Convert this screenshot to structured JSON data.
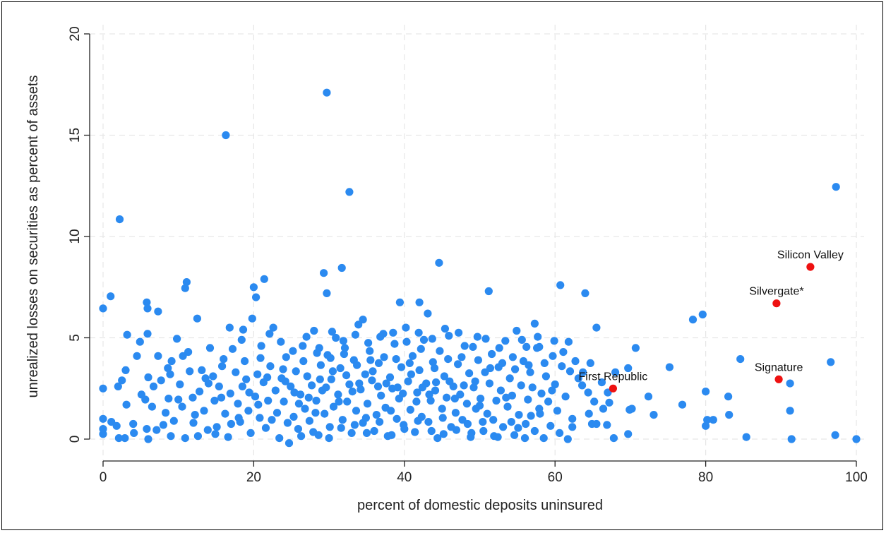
{
  "chart_data": {
    "type": "scatter",
    "xlabel": "percent of domestic deposits uninsured",
    "ylabel": "unrealized losses on securities as percent of assets",
    "xlim": [
      -1.5,
      101
    ],
    "ylim": [
      -0.6,
      21
    ],
    "xticks": [
      0,
      20,
      40,
      60,
      80,
      100
    ],
    "yticks": [
      0,
      5,
      10,
      15,
      20
    ],
    "grid": true,
    "colors": {
      "other_banks": "#2b8af0",
      "highlighted": "#ee1111"
    },
    "highlighted": [
      {
        "label": "Silicon Valley",
        "x": 93.9,
        "y": 8.5
      },
      {
        "label": "Silvergate*",
        "x": 89.4,
        "y": 6.7
      },
      {
        "label": "Signature",
        "x": 89.7,
        "y": 2.95
      },
      {
        "label": "First Republic",
        "x": 67.7,
        "y": 2.5
      }
    ],
    "points": [
      [
        29.7,
        17.1
      ],
      [
        16.3,
        15.0
      ],
      [
        32.7,
        12.2
      ],
      [
        2.2,
        10.85
      ],
      [
        97.3,
        12.45
      ],
      [
        44.6,
        8.7
      ],
      [
        29.3,
        8.2
      ],
      [
        31.7,
        8.45
      ],
      [
        21.4,
        7.9
      ],
      [
        11.1,
        7.75
      ],
      [
        10.9,
        7.45
      ],
      [
        1.0,
        7.05
      ],
      [
        0.0,
        6.45
      ],
      [
        5.8,
        6.75
      ],
      [
        5.9,
        6.45
      ],
      [
        7.3,
        6.3
      ],
      [
        12.5,
        5.95
      ],
      [
        20.0,
        7.5
      ],
      [
        20.3,
        7.0
      ],
      [
        60.7,
        7.6
      ],
      [
        64.0,
        7.2
      ],
      [
        51.2,
        7.3
      ],
      [
        29.7,
        7.2
      ],
      [
        39.4,
        6.75
      ],
      [
        42.0,
        6.75
      ],
      [
        65.5,
        5.5
      ],
      [
        79.6,
        6.15
      ],
      [
        78.3,
        5.9
      ],
      [
        57.3,
        5.7
      ],
      [
        3.2,
        5.15
      ],
      [
        5.9,
        5.2
      ],
      [
        16.8,
        5.5
      ],
      [
        18.6,
        5.4
      ],
      [
        34.5,
        5.9
      ],
      [
        43.1,
        6.2
      ],
      [
        75.2,
        3.55
      ],
      [
        70.7,
        4.5
      ],
      [
        68.0,
        3.3
      ],
      [
        69.7,
        3.5
      ],
      [
        72.4,
        2.1
      ],
      [
        73.1,
        1.2
      ],
      [
        69.9,
        1.45
      ],
      [
        70.2,
        1.5
      ],
      [
        69.7,
        0.25
      ],
      [
        76.9,
        1.7
      ],
      [
        80.0,
        2.35
      ],
      [
        80.0,
        0.65
      ],
      [
        80.2,
        0.95
      ],
      [
        81.0,
        0.95
      ],
      [
        83.0,
        2.1
      ],
      [
        83.1,
        1.2
      ],
      [
        84.6,
        3.95
      ],
      [
        85.4,
        0.1
      ],
      [
        91.2,
        2.75
      ],
      [
        91.2,
        1.4
      ],
      [
        91.4,
        0.0
      ],
      [
        96.6,
        3.8
      ],
      [
        97.2,
        0.2
      ],
      [
        100.0,
        0.0
      ],
      [
        67.8,
        0.05
      ],
      [
        62.3,
        1.0
      ],
      [
        62.3,
        0.6
      ],
      [
        64.5,
        1.25
      ],
      [
        64.9,
        0.75
      ],
      [
        65.5,
        0.75
      ],
      [
        66.9,
        0.7
      ],
      [
        67.0,
        2.3
      ],
      [
        67.2,
        1.8
      ],
      [
        63.1,
        3.0
      ],
      [
        63.7,
        3.3
      ],
      [
        64.4,
        2.3
      ],
      [
        65.2,
        1.85
      ],
      [
        61.8,
        4.8
      ],
      [
        61.1,
        4.3
      ],
      [
        62.0,
        3.35
      ],
      [
        0.0,
        2.5
      ],
      [
        0.0,
        1.0
      ],
      [
        0.0,
        0.25
      ],
      [
        0.0,
        0.5
      ],
      [
        1.1,
        0.85
      ],
      [
        1.8,
        0.65
      ],
      [
        2.1,
        0.05
      ],
      [
        2.9,
        0.05
      ],
      [
        3.1,
        1.7
      ],
      [
        2.5,
        2.9
      ],
      [
        3.0,
        3.4
      ],
      [
        2.0,
        2.6
      ],
      [
        4.0,
        0.75
      ],
      [
        4.1,
        0.3
      ],
      [
        4.5,
        4.1
      ],
      [
        4.9,
        4.8
      ],
      [
        5.1,
        2.2
      ],
      [
        5.6,
        1.95
      ],
      [
        5.8,
        0.5
      ],
      [
        6.0,
        0.0
      ],
      [
        6.0,
        3.05
      ],
      [
        6.7,
        2.6
      ],
      [
        6.5,
        1.6
      ],
      [
        7.1,
        0.45
      ],
      [
        7.3,
        4.1
      ],
      [
        7.7,
        2.9
      ],
      [
        8.0,
        0.7
      ],
      [
        8.3,
        1.3
      ],
      [
        8.6,
        3.5
      ],
      [
        8.7,
        2.0
      ],
      [
        9.0,
        0.15
      ],
      [
        9.1,
        3.85
      ],
      [
        9.4,
        0.9
      ],
      [
        9.8,
        4.95
      ],
      [
        10.2,
        2.7
      ],
      [
        10.5,
        1.6
      ],
      [
        10.9,
        0.05
      ],
      [
        11.3,
        4.3
      ],
      [
        11.5,
        3.35
      ],
      [
        11.9,
        2.05
      ],
      [
        12.0,
        0.8
      ],
      [
        12.6,
        0.15
      ],
      [
        12.8,
        2.35
      ],
      [
        13.1,
        3.4
      ],
      [
        13.4,
        1.4
      ],
      [
        13.9,
        0.45
      ],
      [
        14.0,
        2.75
      ],
      [
        14.2,
        4.5
      ],
      [
        14.6,
        3.1
      ],
      [
        14.8,
        1.9
      ],
      [
        15.1,
        0.6
      ],
      [
        15.4,
        2.6
      ],
      [
        15.8,
        3.6
      ],
      [
        16.2,
        1.25
      ],
      [
        16.6,
        0.1
      ],
      [
        16.9,
        2.25
      ],
      [
        17.2,
        4.45
      ],
      [
        17.6,
        3.3
      ],
      [
        17.9,
        1.75
      ],
      [
        18.2,
        0.85
      ],
      [
        18.5,
        2.6
      ],
      [
        18.8,
        3.85
      ],
      [
        19.3,
        1.4
      ],
      [
        19.6,
        0.3
      ],
      [
        19.8,
        5.95
      ],
      [
        20.2,
        2.1
      ],
      [
        20.5,
        3.2
      ],
      [
        20.8,
        1.05
      ],
      [
        21.0,
        4.6
      ],
      [
        21.3,
        2.8
      ],
      [
        21.6,
        0.55
      ],
      [
        21.9,
        1.9
      ],
      [
        22.2,
        3.6
      ],
      [
        22.6,
        5.5
      ],
      [
        22.9,
        2.4
      ],
      [
        23.1,
        1.3
      ],
      [
        23.4,
        0.05
      ],
      [
        23.7,
        3.0
      ],
      [
        24.0,
        1.85
      ],
      [
        24.3,
        4.05
      ],
      [
        24.7,
        -0.2
      ],
      [
        24.9,
        2.6
      ],
      [
        25.3,
        1.1
      ],
      [
        25.6,
        3.35
      ],
      [
        25.9,
        0.5
      ],
      [
        26.2,
        2.2
      ],
      [
        26.5,
        4.6
      ],
      [
        26.8,
        1.5
      ],
      [
        27.1,
        3.1
      ],
      [
        27.4,
        0.9
      ],
      [
        27.7,
        2.65
      ],
      [
        28.0,
        5.35
      ],
      [
        28.3,
        1.9
      ],
      [
        28.6,
        0.2
      ],
      [
        28.9,
        3.65
      ],
      [
        29.1,
        2.4
      ],
      [
        29.4,
        1.25
      ],
      [
        29.8,
        4.15
      ],
      [
        30.1,
        0.6
      ],
      [
        30.3,
        2.95
      ],
      [
        30.6,
        1.6
      ],
      [
        30.9,
        5.0
      ],
      [
        31.2,
        2.2
      ],
      [
        31.5,
        3.5
      ],
      [
        31.8,
        0.95
      ],
      [
        32.1,
        4.5
      ],
      [
        32.4,
        1.85
      ],
      [
        32.7,
        2.7
      ],
      [
        33.0,
        0.3
      ],
      [
        33.3,
        3.9
      ],
      [
        33.6,
        1.4
      ],
      [
        33.9,
        5.65
      ],
      [
        34.2,
        2.45
      ],
      [
        34.5,
        0.8
      ],
      [
        34.8,
        3.2
      ],
      [
        35.1,
        1.75
      ],
      [
        35.4,
        4.35
      ],
      [
        35.7,
        2.9
      ],
      [
        36.0,
        0.4
      ],
      [
        36.3,
        1.2
      ],
      [
        36.6,
        3.75
      ],
      [
        36.9,
        2.15
      ],
      [
        37.2,
        5.2
      ],
      [
        37.5,
        1.55
      ],
      [
        37.8,
        0.15
      ],
      [
        38.1,
        3.05
      ],
      [
        38.4,
        2.5
      ],
      [
        38.7,
        4.7
      ],
      [
        39.0,
        1.0
      ],
      [
        39.3,
        2.0
      ],
      [
        39.6,
        3.55
      ],
      [
        39.9,
        0.7
      ],
      [
        40.2,
        5.5
      ],
      [
        40.5,
        2.85
      ],
      [
        40.8,
        1.45
      ],
      [
        41.1,
        4.1
      ],
      [
        41.4,
        0.35
      ],
      [
        41.7,
        2.3
      ],
      [
        42.0,
        3.4
      ],
      [
        42.3,
        1.1
      ],
      [
        42.6,
        4.9
      ],
      [
        42.9,
        2.75
      ],
      [
        43.2,
        0.85
      ],
      [
        43.5,
        1.9
      ],
      [
        43.8,
        3.8
      ],
      [
        44.1,
        2.4
      ],
      [
        44.4,
        0.05
      ],
      [
        44.7,
        4.35
      ],
      [
        45.0,
        1.5
      ],
      [
        45.3,
        3.1
      ],
      [
        45.6,
        2.05
      ],
      [
        45.9,
        5.1
      ],
      [
        46.2,
        0.6
      ],
      [
        46.5,
        2.6
      ],
      [
        46.8,
        1.3
      ],
      [
        47.1,
        3.7
      ],
      [
        47.4,
        2.2
      ],
      [
        47.7,
        0.95
      ],
      [
        48.0,
        4.6
      ],
      [
        48.3,
        1.75
      ],
      [
        48.6,
        3.25
      ],
      [
        48.9,
        0.3
      ],
      [
        49.2,
        2.55
      ],
      [
        49.5,
        1.5
      ],
      [
        49.8,
        3.9
      ],
      [
        50.1,
        2.0
      ],
      [
        50.4,
        0.85
      ],
      [
        50.7,
        3.3
      ],
      [
        51.0,
        1.25
      ],
      [
        51.3,
        2.75
      ],
      [
        51.6,
        4.2
      ],
      [
        51.9,
        0.15
      ],
      [
        52.2,
        1.9
      ],
      [
        52.5,
        3.55
      ],
      [
        52.8,
        2.4
      ],
      [
        53.1,
        0.6
      ],
      [
        53.4,
        4.85
      ],
      [
        53.7,
        1.6
      ],
      [
        54.0,
        3.0
      ],
      [
        54.3,
        2.15
      ],
      [
        54.6,
        0.2
      ],
      [
        54.9,
        5.35
      ],
      [
        55.2,
        1.2
      ],
      [
        55.5,
        2.65
      ],
      [
        55.8,
        3.85
      ],
      [
        56.1,
        0.75
      ],
      [
        56.4,
        1.95
      ],
      [
        56.7,
        3.3
      ],
      [
        57.0,
        2.55
      ],
      [
        57.3,
        0.4
      ],
      [
        57.6,
        4.5
      ],
      [
        57.9,
        1.5
      ],
      [
        58.2,
        2.25
      ],
      [
        58.5,
        0.05
      ],
      [
        58.8,
        3.1
      ],
      [
        59.1,
        1.85
      ],
      [
        59.4,
        0.65
      ],
      [
        59.7,
        4.1
      ],
      [
        60.0,
        2.7
      ],
      [
        60.3,
        1.4
      ],
      [
        60.6,
        0.3
      ],
      [
        12.2,
        1.2
      ],
      [
        14.9,
        0.25
      ],
      [
        15.7,
        2.05
      ],
      [
        17.0,
        0.75
      ],
      [
        19.0,
        2.95
      ],
      [
        20.6,
        1.7
      ],
      [
        22.4,
        0.95
      ],
      [
        24.2,
        2.85
      ],
      [
        26.0,
        1.75
      ],
      [
        27.9,
        0.35
      ],
      [
        29.6,
        2.55
      ],
      [
        31.3,
        1.85
      ],
      [
        33.1,
        2.35
      ],
      [
        34.9,
        1.05
      ],
      [
        36.5,
        2.6
      ],
      [
        38.2,
        1.4
      ],
      [
        39.8,
        2.25
      ],
      [
        41.6,
        1.85
      ],
      [
        43.3,
        2.2
      ],
      [
        45.1,
        1.05
      ],
      [
        46.7,
        2.0
      ],
      [
        48.4,
        0.75
      ],
      [
        50.0,
        1.65
      ],
      [
        51.8,
        0.95
      ],
      [
        53.5,
        2.05
      ],
      [
        55.1,
        0.55
      ],
      [
        56.8,
        1.15
      ],
      [
        21.8,
        3.05
      ],
      [
        23.9,
        3.45
      ],
      [
        25.4,
        2.3
      ],
      [
        27.3,
        2.05
      ],
      [
        28.8,
        2.95
      ],
      [
        30.5,
        3.35
      ],
      [
        32.3,
        3.15
      ],
      [
        34.0,
        2.75
      ],
      [
        35.8,
        3.35
      ],
      [
        37.6,
        2.75
      ],
      [
        39.1,
        2.55
      ],
      [
        40.9,
        3.2
      ],
      [
        42.4,
        2.55
      ],
      [
        44.2,
        2.8
      ],
      [
        46.0,
        2.85
      ],
      [
        47.9,
        2.65
      ],
      [
        49.4,
        2.85
      ],
      [
        18.0,
        1.05
      ],
      [
        26.6,
        3.85
      ],
      [
        28.4,
        4.25
      ],
      [
        30.2,
        4.0
      ],
      [
        32.0,
        4.2
      ],
      [
        33.7,
        3.65
      ],
      [
        35.5,
        3.9
      ],
      [
        37.3,
        4.05
      ],
      [
        38.9,
        3.95
      ],
      [
        40.7,
        3.75
      ],
      [
        42.2,
        4.45
      ],
      [
        44.0,
        3.5
      ],
      [
        45.8,
        3.95
      ],
      [
        47.6,
        4.05
      ],
      [
        49.1,
        4.55
      ],
      [
        50.8,
        4.95
      ],
      [
        52.6,
        4.5
      ],
      [
        54.4,
        4.05
      ],
      [
        56.2,
        4.55
      ],
      [
        23.6,
        4.8
      ],
      [
        25.2,
        4.35
      ],
      [
        27.0,
        5.05
      ],
      [
        28.7,
        4.5
      ],
      [
        30.4,
        5.3
      ],
      [
        31.9,
        4.85
      ],
      [
        33.5,
        5.15
      ],
      [
        35.2,
        4.75
      ],
      [
        36.8,
        5.05
      ],
      [
        38.5,
        5.25
      ],
      [
        40.3,
        4.8
      ],
      [
        41.9,
        5.25
      ],
      [
        43.7,
        4.95
      ],
      [
        45.4,
        5.45
      ],
      [
        47.2,
        5.25
      ],
      [
        49.7,
        5.05
      ],
      [
        55.6,
        4.9
      ],
      [
        57.9,
        4.55
      ],
      [
        8.9,
        3.2
      ],
      [
        10.0,
        1.95
      ],
      [
        10.6,
        4.1
      ],
      [
        13.6,
        3.0
      ],
      [
        16.0,
        3.95
      ],
      [
        18.4,
        4.9
      ],
      [
        19.4,
        2.3
      ],
      [
        20.9,
        4.0
      ],
      [
        22.1,
        5.2
      ],
      [
        24.5,
        0.8
      ],
      [
        26.3,
        0.15
      ],
      [
        28.2,
        1.3
      ],
      [
        30.0,
        0.05
      ],
      [
        31.6,
        0.55
      ],
      [
        33.4,
        0.7
      ],
      [
        35.0,
        0.3
      ],
      [
        36.7,
        0.85
      ],
      [
        38.3,
        0.2
      ],
      [
        40.0,
        0.5
      ],
      [
        41.8,
        0.9
      ],
      [
        43.6,
        0.4
      ],
      [
        45.2,
        0.25
      ],
      [
        46.9,
        0.45
      ],
      [
        48.8,
        0.1
      ],
      [
        50.5,
        0.4
      ],
      [
        52.4,
        0.1
      ],
      [
        54.2,
        0.85
      ],
      [
        56.0,
        0.05
      ],
      [
        58.0,
        1.25
      ],
      [
        59.6,
        2.4
      ],
      [
        61.4,
        2.1
      ],
      [
        60.9,
        3.6
      ],
      [
        63.6,
        2.65
      ],
      [
        66.2,
        2.8
      ],
      [
        66.4,
        1.5
      ],
      [
        64.7,
        3.75
      ],
      [
        61.7,
        0.0
      ],
      [
        62.7,
        3.85
      ],
      [
        58.6,
        3.75
      ],
      [
        59.9,
        4.85
      ],
      [
        57.7,
        5.05
      ],
      [
        56.5,
        3.65
      ],
      [
        54.7,
        3.45
      ],
      [
        53.0,
        3.75
      ],
      [
        51.4,
        3.5
      ]
    ]
  }
}
